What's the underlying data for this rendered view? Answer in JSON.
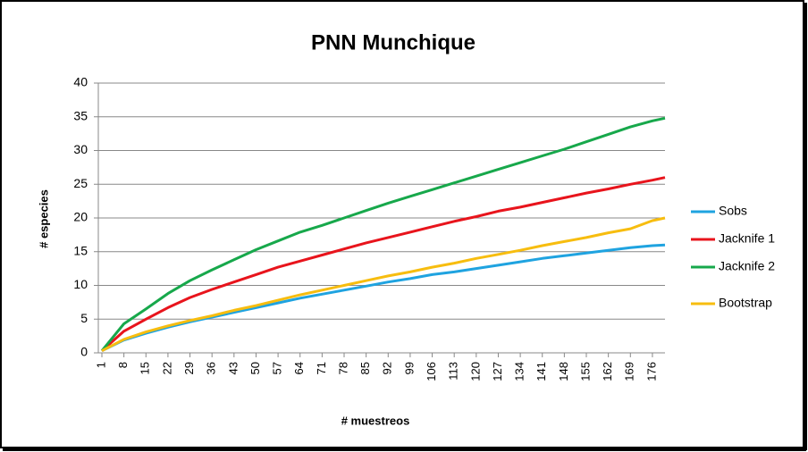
{
  "chart_data": {
    "type": "line",
    "title": "PNN Munchique",
    "xlabel": "# muestreos",
    "ylabel": "# especies",
    "x": [
      1,
      8,
      15,
      22,
      29,
      36,
      43,
      50,
      57,
      64,
      71,
      78,
      85,
      92,
      99,
      106,
      113,
      120,
      127,
      134,
      141,
      148,
      155,
      162,
      169,
      176,
      180
    ],
    "xlim": [
      1,
      180
    ],
    "xticks": [
      1,
      8,
      15,
      22,
      29,
      36,
      43,
      50,
      57,
      64,
      71,
      78,
      85,
      92,
      99,
      106,
      113,
      120,
      127,
      134,
      141,
      148,
      155,
      162,
      169,
      176
    ],
    "ylim": [
      0,
      40
    ],
    "yticks": [
      0,
      5,
      10,
      15,
      20,
      25,
      30,
      35,
      40
    ],
    "grid": true,
    "legend": "right",
    "series": [
      {
        "name": "Sobs",
        "color": "#1fa3e0",
        "values": [
          0.3,
          1.9,
          2.9,
          3.8,
          4.6,
          5.3,
          6.0,
          6.7,
          7.4,
          8.1,
          8.7,
          9.3,
          9.9,
          10.5,
          11.0,
          11.6,
          12.0,
          12.5,
          13.0,
          13.5,
          14.0,
          14.4,
          14.8,
          15.2,
          15.6,
          15.9,
          16.0
        ]
      },
      {
        "name": "Jacknife 1",
        "color": "#e8141c",
        "values": [
          0.3,
          3.2,
          5.0,
          6.7,
          8.2,
          9.4,
          10.5,
          11.6,
          12.7,
          13.6,
          14.5,
          15.4,
          16.3,
          17.1,
          17.9,
          18.7,
          19.5,
          20.2,
          21.0,
          21.6,
          22.3,
          23.0,
          23.7,
          24.3,
          25.0,
          25.6,
          26.0
        ]
      },
      {
        "name": "Jacknife 2",
        "color": "#17a84b",
        "values": [
          0.3,
          4.3,
          6.5,
          8.8,
          10.7,
          12.3,
          13.8,
          15.3,
          16.6,
          17.9,
          18.9,
          20.0,
          21.1,
          22.2,
          23.2,
          24.2,
          25.2,
          26.2,
          27.2,
          28.2,
          29.2,
          30.2,
          31.3,
          32.4,
          33.5,
          34.4,
          34.8
        ]
      },
      {
        "name": "Bootstrap",
        "color": "#f7bd0f",
        "values": [
          0.3,
          2.0,
          3.1,
          4.0,
          4.8,
          5.5,
          6.3,
          7.0,
          7.8,
          8.6,
          9.3,
          10.0,
          10.7,
          11.4,
          12.0,
          12.7,
          13.3,
          14.0,
          14.6,
          15.2,
          15.9,
          16.5,
          17.1,
          17.8,
          18.4,
          19.6,
          20.0
        ]
      }
    ]
  }
}
